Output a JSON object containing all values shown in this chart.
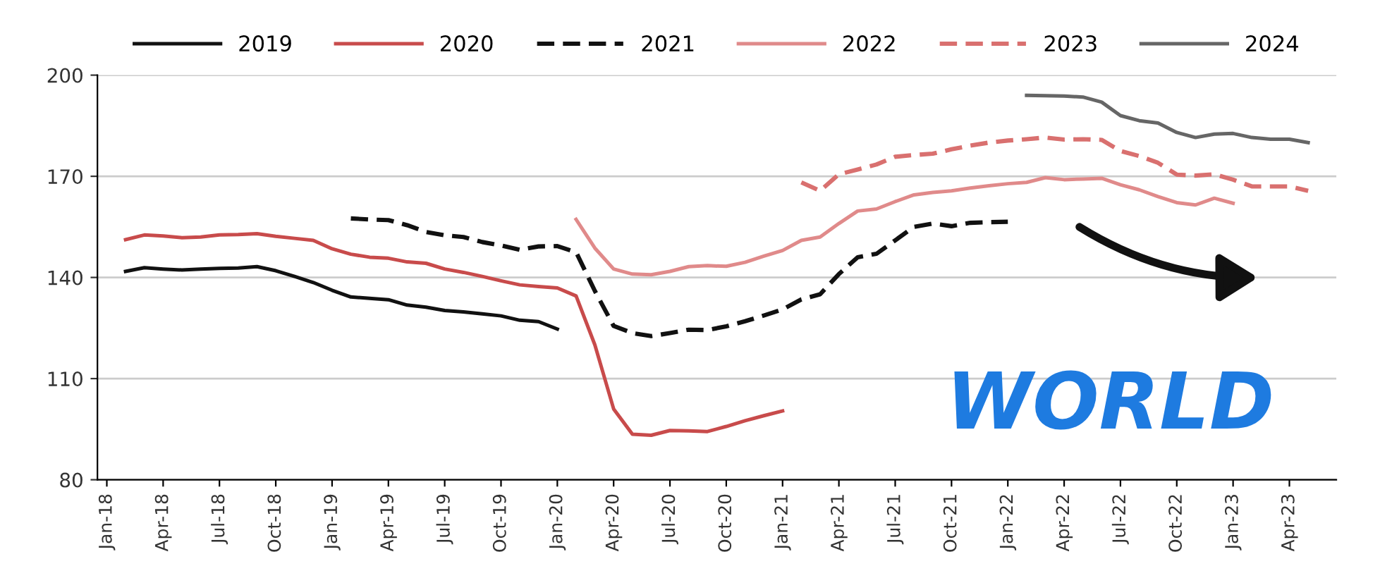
{
  "chart_data": {
    "type": "line",
    "categories": [
      "Jan-18",
      null,
      null,
      "Apr-18",
      null,
      null,
      "Jul-18",
      null,
      null,
      "Oct-18",
      null,
      null,
      "Jan-19",
      null,
      null,
      "Apr-19",
      null,
      null,
      "Jul-19",
      null,
      null,
      "Oct-19",
      null,
      null,
      "Jan-20",
      null,
      null,
      "Apr-20",
      null,
      null,
      "Jul-20",
      null,
      null,
      "Oct-20",
      null,
      null,
      "Jan-21",
      null,
      null,
      "Apr-21",
      null,
      null,
      "Jul-21",
      null,
      null,
      "Oct-21",
      null,
      null,
      "Jan-22",
      null,
      null,
      "Apr-22",
      null,
      null,
      "Jul-22",
      null,
      null,
      "Oct-22",
      null,
      null,
      "Jan-23",
      null,
      null,
      "Apr-23",
      null,
      null
    ],
    "series": [
      {
        "name": "2019",
        "color": "#111111",
        "line_style": "solid",
        "values": [
          null,
          141.8,
          142.9,
          142.5,
          142.2,
          142.5,
          142.7,
          142.8,
          143.2,
          142.0,
          140.3,
          138.5,
          136.2,
          134.2,
          133.8,
          133.4,
          131.8,
          131.2,
          130.2,
          129.8,
          129.2,
          128.6,
          127.3,
          126.9,
          124.7,
          null,
          null,
          null,
          null,
          null,
          null,
          null,
          null,
          null,
          null,
          null,
          null,
          null,
          null,
          null,
          null,
          null,
          null,
          null,
          null,
          null,
          null,
          null,
          null,
          null,
          null,
          null,
          null,
          null,
          null,
          null,
          null,
          null,
          null,
          null,
          null,
          null,
          null,
          null,
          null,
          null
        ]
      },
      {
        "name": "2020",
        "color": "#c84b4b",
        "line_style": "solid",
        "values": [
          null,
          151.2,
          152.6,
          152.3,
          151.8,
          152.0,
          152.6,
          152.7,
          153.0,
          152.2,
          151.6,
          151.0,
          148.5,
          146.9,
          146.0,
          145.7,
          144.6,
          144.2,
          142.5,
          141.5,
          140.3,
          139.0,
          137.8,
          137.3,
          136.9,
          134.5,
          120,
          101,
          93.5,
          93.2,
          94.6,
          94.5,
          94.3,
          95.8,
          97.5,
          99,
          100.4,
          null,
          null,
          null,
          null,
          null,
          null,
          null,
          null,
          null,
          null,
          null,
          null,
          null,
          null,
          null,
          null,
          null,
          null,
          null,
          null,
          null,
          null,
          null,
          null,
          null,
          null,
          null,
          null,
          null
        ]
      },
      {
        "name": "2021",
        "color": "#111111",
        "line_style": "dashed",
        "values": [
          null,
          null,
          null,
          null,
          null,
          null,
          null,
          null,
          null,
          null,
          null,
          null,
          null,
          157.5,
          157.2,
          157.0,
          155.5,
          153.5,
          152.5,
          152.0,
          150.5,
          149.5,
          148.2,
          149.2,
          149.3,
          147.5,
          136,
          125.6,
          123.5,
          122.6,
          123.5,
          124.5,
          124.4,
          125.5,
          127,
          128.7,
          130.5,
          133.5,
          135,
          141,
          146,
          147,
          151,
          155,
          156,
          155.2,
          156.2,
          156.4,
          156.5,
          null,
          null,
          null,
          null,
          null,
          null,
          null,
          null,
          null,
          null,
          null,
          null,
          null,
          null,
          null,
          null,
          null
        ]
      },
      {
        "name": "2022",
        "color": "#e08a8a",
        "line_style": "solid",
        "values": [
          null,
          null,
          null,
          null,
          null,
          null,
          null,
          null,
          null,
          null,
          null,
          null,
          null,
          null,
          null,
          null,
          null,
          null,
          null,
          null,
          null,
          null,
          null,
          null,
          null,
          157.2,
          148.7,
          142.5,
          141,
          140.8,
          141.8,
          143.2,
          143.5,
          143.3,
          144.5,
          146.3,
          148,
          151,
          152,
          156,
          159.7,
          160.3,
          162.5,
          164.5,
          165.2,
          165.7,
          166.5,
          167.2,
          167.8,
          168.2,
          169.6,
          169,
          169.2,
          169.4,
          167.5,
          166,
          164,
          162.2,
          161.5,
          163.5,
          162,
          null,
          null,
          null,
          null,
          null
        ]
      },
      {
        "name": "2023",
        "color": "#d9706f",
        "line_style": "dashed",
        "values": [
          null,
          null,
          null,
          null,
          null,
          null,
          null,
          null,
          null,
          null,
          null,
          null,
          null,
          null,
          null,
          null,
          null,
          null,
          null,
          null,
          null,
          null,
          null,
          null,
          null,
          null,
          null,
          null,
          null,
          null,
          null,
          null,
          null,
          null,
          null,
          null,
          null,
          168.2,
          165.7,
          170.6,
          172,
          173.5,
          175.8,
          176.3,
          176.7,
          178,
          179.1,
          180,
          180.6,
          181,
          181.5,
          180.9,
          181,
          180.8,
          177.5,
          176,
          174,
          170.5,
          170.2,
          170.6,
          169,
          167,
          167,
          167,
          165.7,
          null
        ]
      },
      {
        "name": "2024",
        "color": "#666666",
        "line_style": "solid",
        "values": [
          null,
          null,
          null,
          null,
          null,
          null,
          null,
          null,
          null,
          null,
          null,
          null,
          null,
          null,
          null,
          null,
          null,
          null,
          null,
          null,
          null,
          null,
          null,
          null,
          null,
          null,
          null,
          null,
          null,
          null,
          null,
          null,
          null,
          null,
          null,
          null,
          null,
          null,
          null,
          null,
          null,
          null,
          null,
          null,
          null,
          null,
          null,
          null,
          null,
          194,
          193.9,
          193.8,
          193.5,
          192,
          188,
          186.5,
          185.8,
          183,
          181.5,
          182.5,
          182.7,
          181.5,
          181,
          181,
          180,
          null
        ]
      }
    ],
    "ylim": [
      80,
      200
    ],
    "yticks": [
      80,
      110,
      140,
      170,
      200
    ],
    "grid": "y",
    "legend": "top",
    "annotations": [
      "WORLD"
    ]
  }
}
